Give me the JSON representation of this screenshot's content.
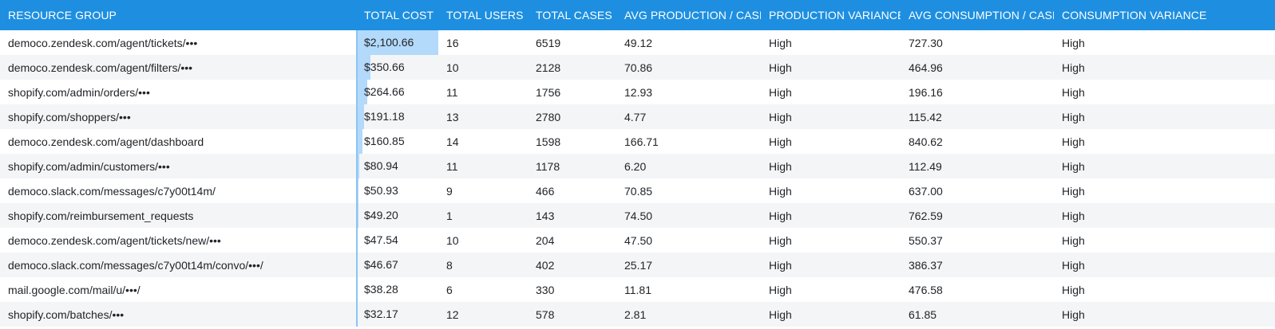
{
  "columns": [
    "RESOURCE GROUP",
    "TOTAL COST",
    "TOTAL USERS",
    "TOTAL CASES",
    "AVG PRODUCTION / CASE",
    "PRODUCTION VARIANCE",
    "AVG CONSUMPTION / CASE",
    "CONSUMPTION VARIANCE"
  ],
  "colors": {
    "header_bg": "#1e8fe0",
    "cost_bar": "#b3d9fb"
  },
  "max_cost": 2100.66,
  "rows": [
    {
      "resource": "democo.zendesk.com/agent/tickets/•••",
      "cost": "$2,100.66",
      "cost_value": 2100.66,
      "users": "16",
      "cases": "6519",
      "avg_prod": "49.12",
      "prod_var": "High",
      "avg_cons": "727.30",
      "cons_var": "High"
    },
    {
      "resource": "democo.zendesk.com/agent/filters/•••",
      "cost": "$350.66",
      "cost_value": 350.66,
      "users": "10",
      "cases": "2128",
      "avg_prod": "70.86",
      "prod_var": "High",
      "avg_cons": "464.96",
      "cons_var": "High"
    },
    {
      "resource": "shopify.com/admin/orders/•••",
      "cost": "$264.66",
      "cost_value": 264.66,
      "users": "11",
      "cases": "1756",
      "avg_prod": "12.93",
      "prod_var": "High",
      "avg_cons": "196.16",
      "cons_var": "High"
    },
    {
      "resource": "shopify.com/shoppers/•••",
      "cost": "$191.18",
      "cost_value": 191.18,
      "users": "13",
      "cases": "2780",
      "avg_prod": "4.77",
      "prod_var": "High",
      "avg_cons": "115.42",
      "cons_var": "High"
    },
    {
      "resource": "democo.zendesk.com/agent/dashboard",
      "cost": "$160.85",
      "cost_value": 160.85,
      "users": "14",
      "cases": "1598",
      "avg_prod": "166.71",
      "prod_var": "High",
      "avg_cons": "840.62",
      "cons_var": "High"
    },
    {
      "resource": "shopify.com/admin/customers/•••",
      "cost": "$80.94",
      "cost_value": 80.94,
      "users": "11",
      "cases": "1178",
      "avg_prod": "6.20",
      "prod_var": "High",
      "avg_cons": "112.49",
      "cons_var": "High"
    },
    {
      "resource": "democo.slack.com/messages/c7y00t14m/",
      "cost": "$50.93",
      "cost_value": 50.93,
      "users": "9",
      "cases": "466",
      "avg_prod": "70.85",
      "prod_var": "High",
      "avg_cons": "637.00",
      "cons_var": "High"
    },
    {
      "resource": "shopify.com/reimbursement_requests",
      "cost": "$49.20",
      "cost_value": 49.2,
      "users": "1",
      "cases": "143",
      "avg_prod": "74.50",
      "prod_var": "High",
      "avg_cons": "762.59",
      "cons_var": "High"
    },
    {
      "resource": "democo.zendesk.com/agent/tickets/new/•••",
      "cost": "$47.54",
      "cost_value": 47.54,
      "users": "10",
      "cases": "204",
      "avg_prod": "47.50",
      "prod_var": "High",
      "avg_cons": "550.37",
      "cons_var": "High"
    },
    {
      "resource": "democo.slack.com/messages/c7y00t14m/convo/•••/",
      "cost": "$46.67",
      "cost_value": 46.67,
      "users": "8",
      "cases": "402",
      "avg_prod": "25.17",
      "prod_var": "High",
      "avg_cons": "386.37",
      "cons_var": "High"
    },
    {
      "resource": "mail.google.com/mail/u/•••/",
      "cost": "$38.28",
      "cost_value": 38.28,
      "users": "6",
      "cases": "330",
      "avg_prod": "11.81",
      "prod_var": "High",
      "avg_cons": "476.58",
      "cons_var": "High"
    },
    {
      "resource": "shopify.com/batches/•••",
      "cost": "$32.17",
      "cost_value": 32.17,
      "users": "12",
      "cases": "578",
      "avg_prod": "2.81",
      "prod_var": "High",
      "avg_cons": "61.85",
      "cons_var": "High"
    }
  ]
}
